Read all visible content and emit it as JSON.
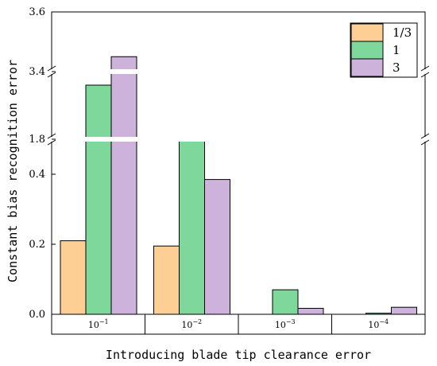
{
  "chart_data": {
    "type": "bar",
    "xlabel": "Introducing blade tip clearance error",
    "ylabel": "Constant bias recognition error",
    "categories": [
      {
        "base": "10",
        "exp": "−1"
      },
      {
        "base": "10",
        "exp": "−2"
      },
      {
        "base": "10",
        "exp": "−3"
      },
      {
        "base": "10",
        "exp": "−4"
      }
    ],
    "series": [
      {
        "name": "1/3",
        "color": "#fdcf94",
        "values": [
          0.21,
          0.195,
          0.0,
          0.0
        ]
      },
      {
        "name": "1",
        "color": "#7ed89b",
        "values": [
          1.96,
          0.545,
          0.07,
          0.003
        ]
      },
      {
        "name": "3",
        "color": "#cdb3dc",
        "values": [
          3.45,
          0.385,
          0.017,
          0.02
        ]
      }
    ],
    "axis_break": true,
    "y_segments": [
      {
        "range": [
          0.0,
          0.5
        ],
        "ticks": [
          {
            "value": 0.0,
            "label": "0.0"
          },
          {
            "value": 0.2,
            "label": "0.2"
          },
          {
            "value": 0.4,
            "label": "0.4"
          }
        ]
      },
      {
        "range": [
          1.8,
          2.0
        ],
        "ticks": [
          {
            "value": 1.8,
            "label": "1.8"
          }
        ]
      },
      {
        "range": [
          3.4,
          3.6
        ],
        "ticks": [
          {
            "value": 3.4,
            "label": "3.4"
          },
          {
            "value": 3.6,
            "label": "3.6"
          }
        ]
      }
    ],
    "legend": {
      "placement": "top-right"
    },
    "grid": false
  }
}
